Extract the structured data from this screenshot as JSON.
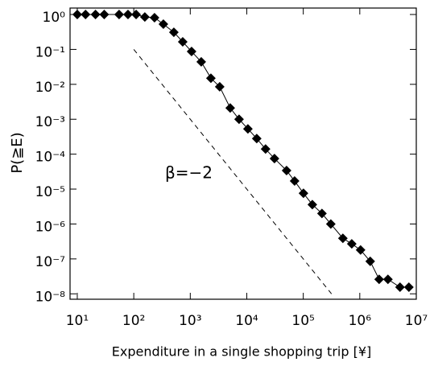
{
  "chart_data": {
    "type": "line",
    "xlabel": "Expenditure in a single shopping trip [¥]",
    "ylabel": "P(≧E)",
    "log_x": true,
    "log_y": true,
    "grid": false,
    "xlim": [
      7.45,
      10000000
    ],
    "ylim": [
      7e-09,
      1.53
    ],
    "xticks": [
      {
        "value": 10,
        "label": "10¹"
      },
      {
        "value": 100,
        "label": "10²"
      },
      {
        "value": 1000,
        "label": "10³"
      },
      {
        "value": 10000,
        "label": "10⁴"
      },
      {
        "value": 100000,
        "label": "10⁵"
      },
      {
        "value": 1000000,
        "label": "10⁶"
      },
      {
        "value": 10000000,
        "label": "10⁷"
      }
    ],
    "yticks": [
      {
        "value": 1,
        "label": "10⁰"
      },
      {
        "value": 0.1,
        "label": "10⁻¹"
      },
      {
        "value": 0.01,
        "label": "10⁻²"
      },
      {
        "value": 0.001,
        "label": "10⁻³"
      },
      {
        "value": 0.0001,
        "label": "10⁻⁴"
      },
      {
        "value": 1e-05,
        "label": "10⁻⁵"
      },
      {
        "value": 1e-06,
        "label": "10⁻⁶"
      },
      {
        "value": 1e-07,
        "label": "10⁻⁷"
      },
      {
        "value": 1e-08,
        "label": "10⁻⁸"
      }
    ],
    "x": [
      10,
      14,
      21,
      30,
      55,
      79,
      110,
      157,
      233,
      334,
      512,
      735,
      1055,
      1563,
      2317,
      3320,
      5090,
      7300,
      10470,
      15000,
      21500,
      30900,
      50600,
      70200,
      100700,
      144600,
      214000,
      307000,
      502000,
      721000,
      1033000,
      1530000,
      2200000,
      3150000,
      5150000,
      7400000
    ],
    "series": [
      {
        "color": "#000000",
        "marker": "diamond",
        "values": [
          1,
          1,
          1,
          1,
          1,
          1,
          1,
          0.85,
          0.81,
          0.53,
          0.31,
          0.165,
          0.087,
          0.044,
          0.015,
          0.0085,
          0.0021,
          0.001,
          0.00053,
          0.00028,
          0.00014,
          7.5e-05,
          3.4e-05,
          1.7e-05,
          7.6e-06,
          3.6e-06,
          2e-06,
          1e-06,
          3.9e-07,
          2.7e-07,
          1.8e-07,
          8.5e-08,
          2.6e-08,
          2.6e-08,
          1.55e-08,
          1.55e-08
        ]
      }
    ],
    "guide": {
      "x": [
        100,
        316000
      ],
      "values": [
        0.1,
        1e-08
      ],
      "color": "#000000",
      "dashed": true
    },
    "annotation": "β=−2"
  }
}
